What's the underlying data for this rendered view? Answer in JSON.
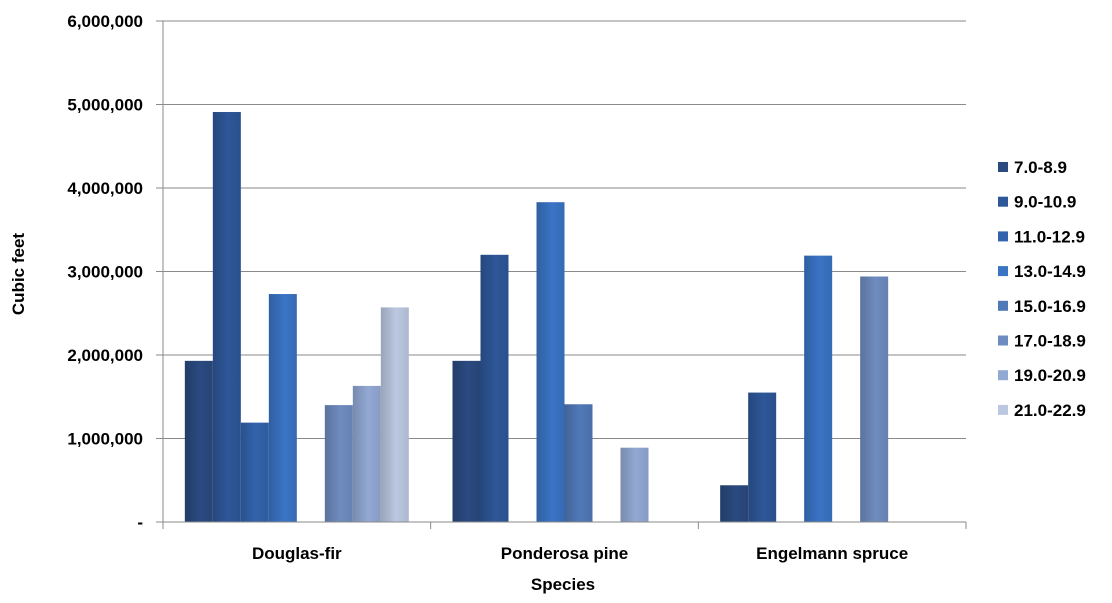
{
  "chart_data": {
    "type": "bar",
    "title": "",
    "xlabel": "Species",
    "ylabel": "Cubic feet",
    "ylim": [
      0,
      6000000
    ],
    "y_ticks": [
      0,
      1000000,
      2000000,
      3000000,
      4000000,
      5000000,
      6000000
    ],
    "y_tick_labels": [
      "-",
      "1,000,000",
      "2,000,000",
      "3,000,000",
      "4,000,000",
      "5,000,000",
      "6,000,000"
    ],
    "grid": true,
    "legend_position": "right",
    "categories": [
      "Douglas-fir",
      "Ponderosa pine",
      "Engelmann spruce"
    ],
    "series": [
      {
        "name": "7.0-8.9",
        "color": "#2b4a80",
        "values": [
          1930000,
          1930000,
          440000
        ]
      },
      {
        "name": "9.0-10.9",
        "color": "#2e5799",
        "values": [
          4910000,
          3200000,
          1550000
        ]
      },
      {
        "name": "11.0-12.9",
        "color": "#3363ac",
        "values": [
          1190000,
          0,
          0
        ]
      },
      {
        "name": "13.0-14.9",
        "color": "#3a74c4",
        "values": [
          2730000,
          3830000,
          3190000
        ]
      },
      {
        "name": "15.0-16.9",
        "color": "#5079b8",
        "values": [
          0,
          1410000,
          0
        ]
      },
      {
        "name": "17.0-18.9",
        "color": "#6f8cc0",
        "values": [
          1400000,
          0,
          2940000
        ]
      },
      {
        "name": "19.0-20.9",
        "color": "#92a9d4",
        "values": [
          1630000,
          890000,
          0
        ]
      },
      {
        "name": "21.0-22.9",
        "color": "#bcc8e2",
        "values": [
          2570000,
          0,
          0
        ]
      }
    ]
  }
}
